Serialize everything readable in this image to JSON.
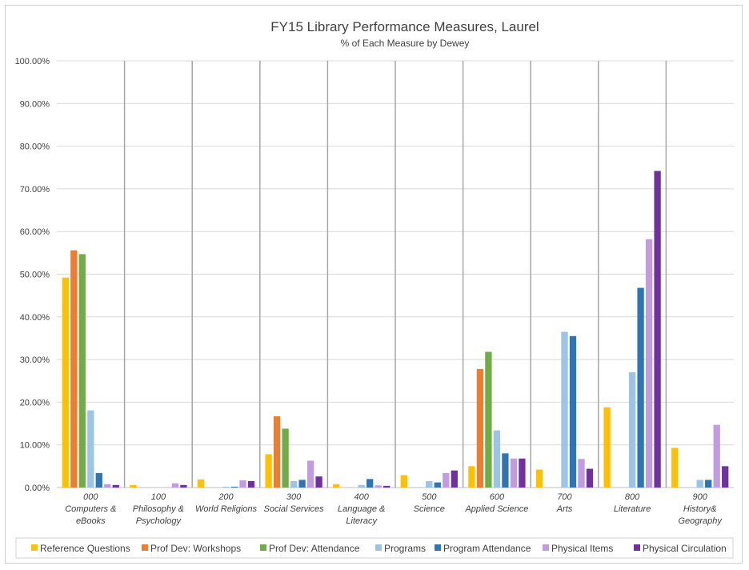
{
  "chart_data": {
    "type": "bar",
    "title": "FY15 Library Performance Measures, Laurel",
    "subtitle": "% of Each Measure by Dewey",
    "xlabel": "",
    "ylabel": "",
    "ylim": [
      0,
      100
    ],
    "yticks": [
      "0.00%",
      "10.00%",
      "20.00%",
      "30.00%",
      "40.00%",
      "50.00%",
      "60.00%",
      "70.00%",
      "80.00%",
      "90.00%",
      "100.00%"
    ],
    "categories": [
      [
        "000",
        "Computers &",
        "eBooks"
      ],
      [
        "100",
        "Philosophy &",
        "Psychology"
      ],
      [
        "200",
        "World Religions"
      ],
      [
        "300",
        "Social Services"
      ],
      [
        "400",
        "Language &",
        "Literacy"
      ],
      [
        "500",
        "Science"
      ],
      [
        "600",
        "Applied Science"
      ],
      [
        "700",
        "Arts"
      ],
      [
        "800",
        "Literature"
      ],
      [
        "900",
        "History&",
        "Geography"
      ]
    ],
    "series": [
      {
        "name": "Reference Questions",
        "color": "#FFC000",
        "values": [
          49.2,
          0.6,
          1.9,
          7.8,
          0.8,
          2.9,
          5.0,
          4.2,
          18.8,
          9.3
        ]
      },
      {
        "name": "Prof Dev: Workshops",
        "color": "#ED7D31",
        "values": [
          55.6,
          0,
          0,
          16.7,
          0,
          0,
          27.8,
          0,
          0,
          0
        ]
      },
      {
        "name": "Prof Dev: Attendance",
        "color": "#70AD47",
        "values": [
          54.7,
          0,
          0,
          13.8,
          0,
          0,
          31.8,
          0,
          0,
          0
        ]
      },
      {
        "name": "Programs",
        "color": "#9DC3E6",
        "values": [
          18.1,
          0,
          0.2,
          1.5,
          0.6,
          1.5,
          13.4,
          36.5,
          27.0,
          1.8
        ]
      },
      {
        "name": "Program Attendance",
        "color": "#2E75B6",
        "values": [
          3.4,
          0,
          0.2,
          1.8,
          2.0,
          1.2,
          8.0,
          35.5,
          46.8,
          1.8
        ]
      },
      {
        "name": "Physical Items",
        "color": "#C39BE0",
        "values": [
          0.8,
          1.0,
          1.7,
          6.3,
          0.5,
          3.4,
          6.8,
          6.7,
          58.2,
          14.7
        ]
      },
      {
        "name": "Physical Circulation",
        "color": "#7030A0",
        "values": [
          0.6,
          0.6,
          1.5,
          2.6,
          0.4,
          4.0,
          6.8,
          4.4,
          74.2,
          5.0
        ]
      }
    ],
    "legend_position": "bottom",
    "grid": true
  }
}
